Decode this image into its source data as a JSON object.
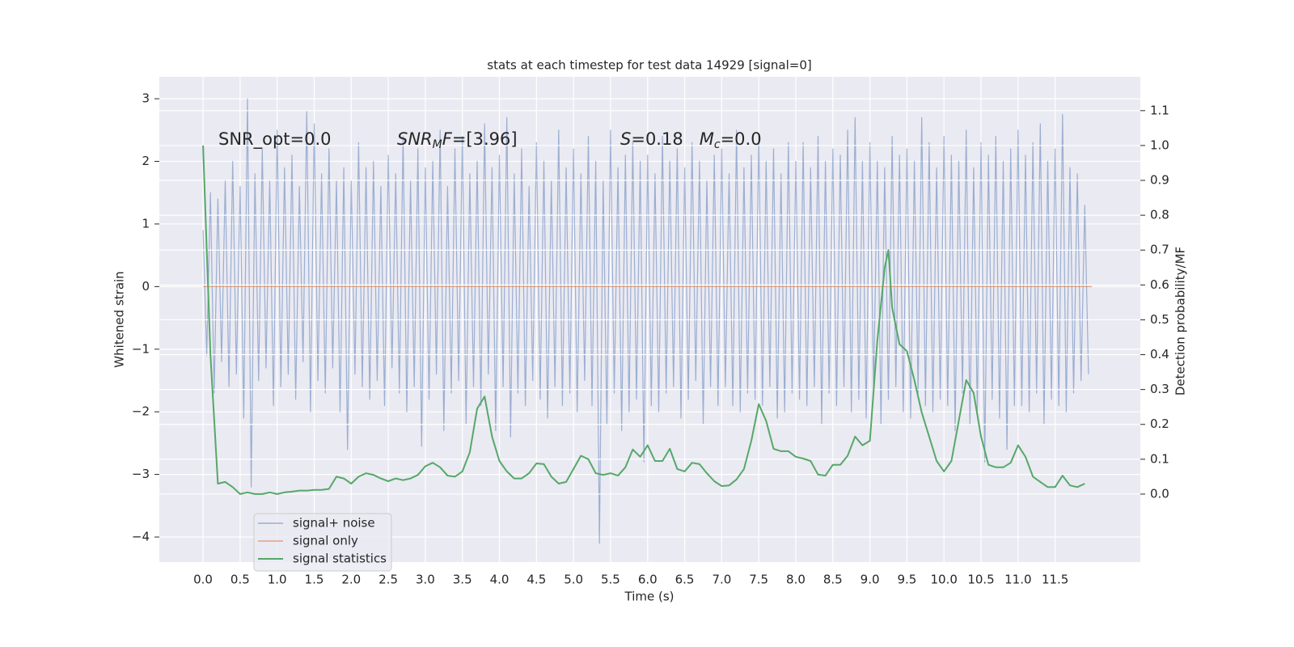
{
  "chart_data": {
    "type": "line",
    "title": "stats at each timestep for test data 14929 [signal=0]",
    "x_label": "Time (s)",
    "y_label": "Whitened strain",
    "y2_label": "Detection probability/MF",
    "xlim": [
      -0.59,
      12.65
    ],
    "ylim": [
      -4.4,
      3.35
    ],
    "y2lim": [
      -0.195,
      1.197
    ],
    "xticks": [
      {
        "value": 0,
        "label": "0.0"
      },
      0.5,
      {
        "value": 1,
        "label": "1.0"
      },
      1.5,
      {
        "value": 2,
        "label": "2.0"
      },
      2.5,
      {
        "value": 3,
        "label": "3.0"
      },
      3.5,
      {
        "value": 4,
        "label": "4.0"
      },
      4.5,
      {
        "value": 5,
        "label": "5.0"
      },
      5.5,
      {
        "value": 6,
        "label": "6.0"
      },
      6.5,
      {
        "value": 7,
        "label": "7.0"
      },
      7.5,
      {
        "value": 8,
        "label": "8.0"
      },
      8.5,
      {
        "value": 9,
        "label": "9.0"
      },
      9.5,
      {
        "value": 10,
        "label": "10.0"
      },
      10.5,
      {
        "value": 11,
        "label": "11.0"
      },
      11.5
    ],
    "yticks": [
      3,
      2,
      1,
      0,
      {
        "value": -1,
        "label": "−1"
      },
      {
        "value": -2,
        "label": "−2"
      },
      {
        "value": -3,
        "label": "−3"
      },
      {
        "value": -4,
        "label": "−4"
      }
    ],
    "y2ticks": [
      {
        "value": 0,
        "label": "0.0"
      },
      0.1,
      0.2,
      0.3,
      0.4,
      0.5,
      0.6,
      0.7,
      0.8,
      0.9,
      {
        "value": 1,
        "label": "1.0"
      },
      1.1
    ],
    "grid": true,
    "background": "#eaeaf2",
    "legend": "lower left",
    "annotations": [
      [
        {
          "text": "SNR_opt=0.0",
          "style": "normal"
        }
      ],
      [
        {
          "text": "SNR",
          "style": "italic"
        },
        {
          "text": "M",
          "style": "sub"
        },
        {
          "text": "F",
          "style": "italic"
        },
        {
          "text": "=[3.96]",
          "style": "normal"
        }
      ],
      [
        {
          "text": "S",
          "style": "italic"
        },
        {
          "text": "=0.18   ",
          "style": "normal"
        },
        {
          "text": "M",
          "style": "italic"
        },
        {
          "text": "c",
          "style": "sub"
        },
        {
          "text": "=0.0",
          "style": "normal"
        }
      ]
    ],
    "series": [
      {
        "name": "signal+ noise",
        "color": "#4c72b0",
        "opacity": 0.5,
        "axis": "y",
        "step": 0.05,
        "x0": 0,
        "values": [
          0.9,
          -1.1,
          1.5,
          -1.7,
          1.4,
          -1.2,
          1.7,
          -1.6,
          2.0,
          -1.4,
          1.6,
          -2.1,
          3.0,
          -3.2,
          1.8,
          -1.5,
          2.2,
          -1.3,
          1.7,
          -1.9,
          2.5,
          -1.6,
          1.9,
          -1.4,
          2.1,
          -1.8,
          1.6,
          -1.2,
          2.8,
          -2.0,
          2.6,
          -1.5,
          1.8,
          -1.7,
          2.2,
          -1.3,
          1.7,
          -2.0,
          1.9,
          -2.6,
          1.7,
          -1.4,
          2.3,
          -1.6,
          1.9,
          -1.8,
          2.0,
          -1.5,
          1.6,
          -1.9,
          2.1,
          -1.3,
          1.8,
          -1.7,
          2.4,
          -2.0,
          1.7,
          -1.6,
          2.2,
          -2.55,
          1.9,
          -1.8,
          2.0,
          -1.4,
          2.5,
          -2.3,
          1.6,
          -1.7,
          2.2,
          -1.5,
          2.4,
          -2.2,
          1.8,
          -1.6,
          2.0,
          -1.9,
          2.6,
          -1.4,
          1.9,
          -2.3,
          2.1,
          -1.6,
          2.7,
          -2.4,
          1.8,
          -1.7,
          2.2,
          -1.9,
          1.6,
          -1.5,
          2.3,
          -1.8,
          2.0,
          -2.1,
          1.7,
          -1.6,
          2.5,
          -1.9,
          1.9,
          -1.7,
          2.2,
          -2.0,
          1.8,
          -1.5,
          2.4,
          -1.9,
          2.0,
          -4.1,
          1.7,
          -2.2,
          2.5,
          -1.7,
          1.9,
          -2.3,
          2.1,
          -2.0,
          2.3,
          -1.8,
          2.0,
          -2.8,
          2.1,
          -1.9,
          1.8,
          -2.0,
          2.4,
          -1.7,
          2.0,
          -1.6,
          2.2,
          -2.1,
          1.9,
          -1.8,
          2.3,
          -1.5,
          2.0,
          -2.2,
          1.7,
          -1.6,
          2.1,
          -1.9,
          2.2,
          -1.6,
          1.8,
          -1.9,
          2.5,
          -2.0,
          1.9,
          -1.7,
          2.1,
          -1.8,
          2.4,
          -1.9,
          2.0,
          -1.6,
          2.2,
          -2.1,
          1.8,
          -2.0,
          2.3,
          -1.7,
          2.0,
          -1.8,
          2.3,
          -1.9,
          1.9,
          -1.6,
          2.4,
          -2.2,
          2.0,
          -1.7,
          2.2,
          -1.9,
          2.1,
          -1.6,
          2.5,
          -2.0,
          2.7,
          -1.8,
          2.0,
          -2.1,
          2.3,
          -1.7,
          2.0,
          -2.2,
          1.9,
          -1.8,
          2.4,
          -1.6,
          2.1,
          -2.0,
          2.2,
          -2.1,
          2.0,
          -1.7,
          2.7,
          -1.9,
          2.3,
          -2.0,
          1.9,
          -1.8,
          2.4,
          -1.9,
          2.1,
          -2.3,
          2.0,
          -1.7,
          2.5,
          -2.2,
          1.9,
          -2.0,
          2.3,
          -2.8,
          2.1,
          -1.8,
          2.4,
          -2.1,
          2.0,
          -2.6,
          2.2,
          -1.9,
          2.5,
          -1.9,
          2.1,
          -2.0,
          2.3,
          -1.7,
          2.6,
          -2.2,
          2.0,
          -1.8,
          2.2,
          -1.9,
          2.75,
          -2.0,
          1.9,
          -1.7,
          1.8,
          -1.5,
          1.3,
          -1.4
        ]
      },
      {
        "name": "signal only",
        "color": "#dd8452",
        "opacity": 0.7,
        "axis": "y",
        "x": [
          0,
          12.0
        ],
        "values": [
          0,
          0
        ]
      },
      {
        "name": "signal statistics",
        "color": "#55a868",
        "opacity": 1,
        "axis": "y2",
        "x": [
          0,
          0.1,
          0.2,
          0.3,
          0.4,
          0.5,
          0.6,
          0.7,
          0.8,
          0.9,
          1.0,
          1.1,
          1.2,
          1.3,
          1.4,
          1.5,
          1.6,
          1.7,
          1.8,
          1.9,
          2.0,
          2.1,
          2.2,
          2.3,
          2.4,
          2.5,
          2.6,
          2.7,
          2.8,
          2.9,
          3.0,
          3.1,
          3.2,
          3.3,
          3.4,
          3.5,
          3.6,
          3.7,
          3.8,
          3.9,
          4.0,
          4.1,
          4.2,
          4.3,
          4.4,
          4.5,
          4.6,
          4.7,
          4.8,
          4.9,
          5.0,
          5.1,
          5.2,
          5.3,
          5.4,
          5.5,
          5.6,
          5.7,
          5.8,
          5.9,
          6.0,
          6.1,
          6.2,
          6.3,
          6.4,
          6.5,
          6.6,
          6.7,
          6.8,
          6.9,
          7.0,
          7.1,
          7.2,
          7.3,
          7.4,
          7.5,
          7.6,
          7.7,
          7.8,
          7.9,
          8.0,
          8.1,
          8.2,
          8.3,
          8.4,
          8.5,
          8.6,
          8.7,
          8.8,
          8.9,
          9.0,
          9.1,
          9.2,
          9.25,
          9.3,
          9.4,
          9.5,
          9.6,
          9.7,
          9.8,
          9.9,
          10.0,
          10.1,
          10.2,
          10.3,
          10.4,
          10.5,
          10.6,
          10.7,
          10.8,
          10.9,
          11.0,
          11.1,
          11.2,
          11.3,
          11.4,
          11.5,
          11.6,
          11.7,
          11.8,
          11.9
        ],
        "values": [
          1.0,
          0.4,
          0.03,
          0.035,
          0.02,
          0.0,
          0.005,
          0.0,
          0.0,
          0.005,
          0.0,
          0.005,
          0.007,
          0.01,
          0.01,
          0.012,
          0.012,
          0.015,
          0.05,
          0.045,
          0.03,
          0.05,
          0.06,
          0.055,
          0.045,
          0.037,
          0.045,
          0.04,
          0.045,
          0.055,
          0.08,
          0.09,
          0.077,
          0.053,
          0.05,
          0.065,
          0.12,
          0.245,
          0.28,
          0.165,
          0.095,
          0.065,
          0.045,
          0.045,
          0.06,
          0.088,
          0.086,
          0.05,
          0.03,
          0.035,
          0.072,
          0.11,
          0.1,
          0.06,
          0.055,
          0.06,
          0.053,
          0.077,
          0.128,
          0.107,
          0.14,
          0.095,
          0.095,
          0.13,
          0.072,
          0.065,
          0.09,
          0.086,
          0.06,
          0.037,
          0.023,
          0.025,
          0.042,
          0.072,
          0.153,
          0.258,
          0.21,
          0.13,
          0.123,
          0.123,
          0.107,
          0.102,
          0.095,
          0.056,
          0.053,
          0.084,
          0.084,
          0.11,
          0.165,
          0.14,
          0.153,
          0.44,
          0.65,
          0.7,
          0.535,
          0.43,
          0.41,
          0.327,
          0.234,
          0.165,
          0.095,
          0.065,
          0.095,
          0.21,
          0.327,
          0.29,
          0.165,
          0.084,
          0.077,
          0.077,
          0.09,
          0.14,
          0.107,
          0.05,
          0.035,
          0.02,
          0.02,
          0.053,
          0.025,
          0.02,
          0.03
        ]
      }
    ]
  }
}
